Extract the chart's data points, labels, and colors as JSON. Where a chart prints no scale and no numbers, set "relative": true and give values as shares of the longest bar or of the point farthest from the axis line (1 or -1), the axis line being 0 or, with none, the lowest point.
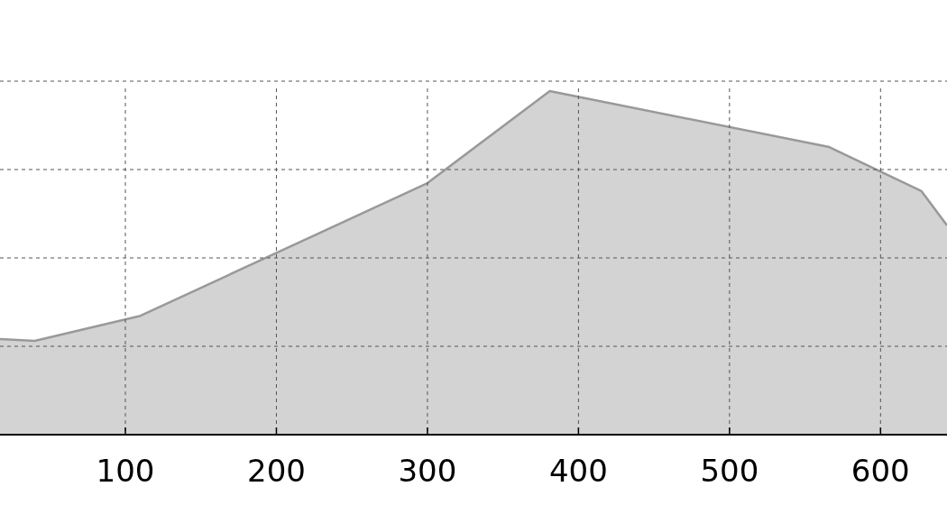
{
  "chart_data": {
    "type": "area",
    "relative": true,
    "x": [
      17,
      40,
      110,
      300,
      381,
      566,
      627,
      644
    ],
    "series": [
      {
        "color": "#d3d3d3",
        "values": [
          0.278,
          0.273,
          0.346,
          0.732,
          1,
          0.837,
          0.709,
          0.609
        ]
      }
    ],
    "xlim": [
      17,
      644
    ],
    "xticks": [
      100,
      200,
      300,
      400,
      500,
      600
    ],
    "grid": true
  }
}
